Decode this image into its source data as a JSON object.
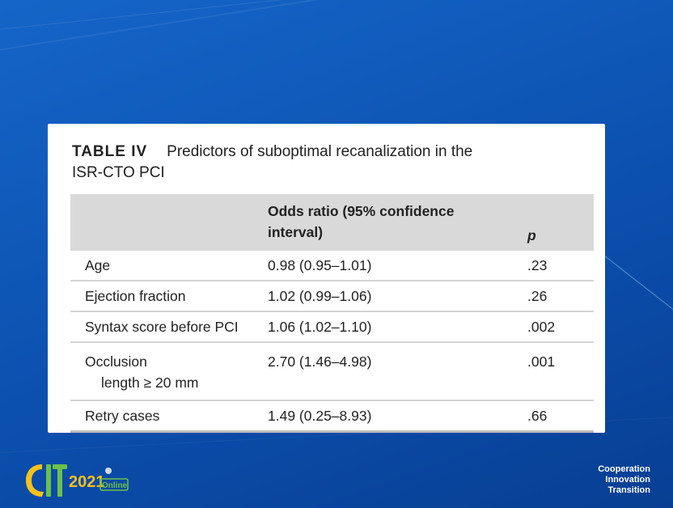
{
  "slide": {
    "table_label": "TABLE IV",
    "table_title_line1": "Predictors of suboptimal recanalization in the",
    "table_title_line2": "ISR-CTO PCI",
    "headers": [
      "",
      "Odds ratio (95% confidence",
      "interval)",
      "p"
    ],
    "rows": [
      {
        "predictor": "Age",
        "odds_ratio": "0.98 (0.95–1.01)",
        "p": ".23"
      },
      {
        "predictor": "Ejection fraction",
        "odds_ratio": "1.02 (0.99–1.06)",
        "p": ".26"
      },
      {
        "predictor": "Syntax score before PCI",
        "odds_ratio": "1.06 (1.02–1.10)",
        "p": ".002"
      },
      {
        "predictor": "Occlusion",
        "predictor_line2": "length ≥ 20 mm",
        "odds_ratio": "2.70 (1.46–4.98)",
        "p": ".001"
      },
      {
        "predictor": "Retry cases",
        "odds_ratio": "1.49 (0.25–8.93)",
        "p": ".66"
      }
    ]
  },
  "branding": {
    "logo_letters": "CIT",
    "logo_year": "2021",
    "logo_badge": "Online",
    "tagline": [
      "Cooperation",
      "Innovation",
      "Transition"
    ]
  },
  "colors": {
    "background": "#0f58b8",
    "table_header": "#d9d9d9",
    "logo_primary": "#f6c21a",
    "logo_secondary": "#6cc04a"
  }
}
